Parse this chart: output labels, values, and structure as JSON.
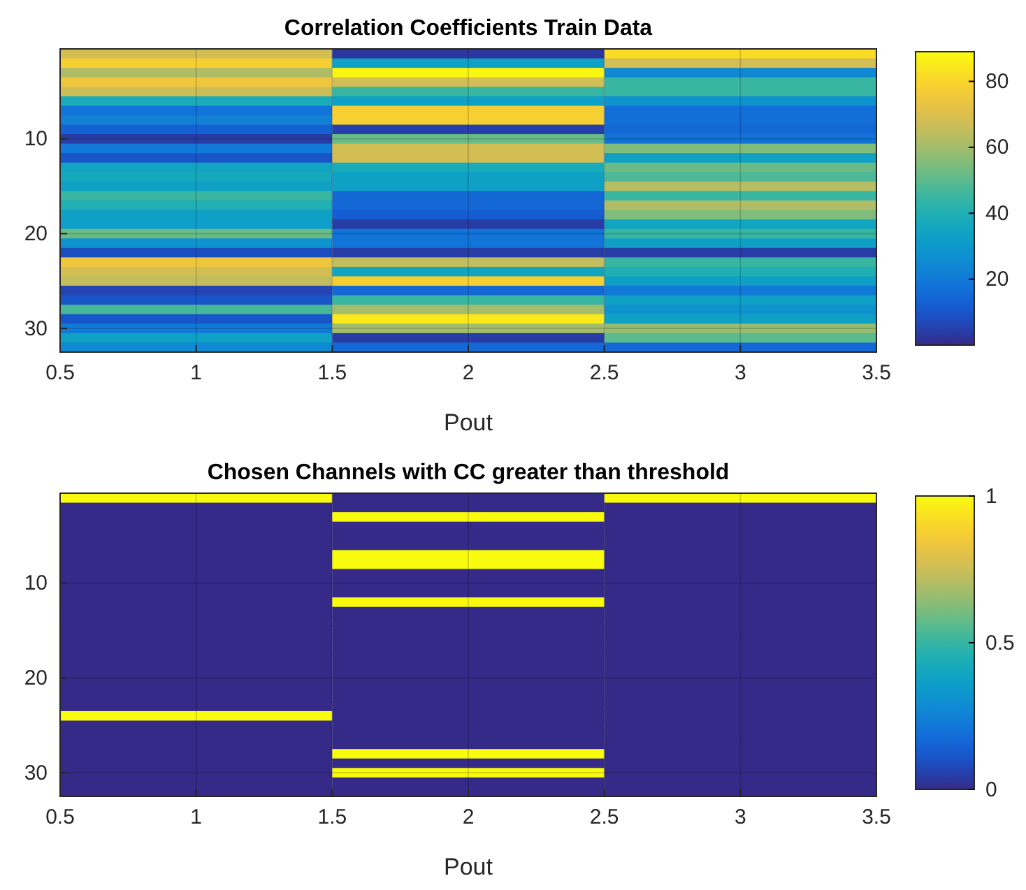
{
  "chart_data": [
    {
      "type": "heatmap",
      "title": "Correlation Coefficients Train Data",
      "xlabel": "Pout",
      "x": [
        1,
        2,
        3
      ],
      "xlim": [
        0.5,
        3.5
      ],
      "xticks": [
        0.5,
        1,
        1.5,
        2,
        2.5,
        3,
        3.5
      ],
      "y_categories": [
        null,
        null,
        null,
        null,
        null,
        null,
        null,
        null,
        null,
        "10",
        null,
        null,
        null,
        null,
        null,
        null,
        null,
        null,
        null,
        "20",
        null,
        null,
        null,
        null,
        null,
        null,
        null,
        null,
        null,
        "30",
        null,
        null
      ],
      "cells": [
        [
          68,
          3,
          82
        ],
        [
          78,
          33,
          68
        ],
        [
          62,
          88,
          25
        ],
        [
          75,
          68,
          45
        ],
        [
          67,
          45,
          45
        ],
        [
          38,
          33,
          28
        ],
        [
          18,
          78,
          17
        ],
        [
          22,
          78,
          17
        ],
        [
          13,
          5,
          15
        ],
        [
          4,
          52,
          18
        ],
        [
          20,
          68,
          55
        ],
        [
          10,
          68,
          33
        ],
        [
          35,
          38,
          52
        ],
        [
          37,
          33,
          48
        ],
        [
          33,
          33,
          63
        ],
        [
          45,
          15,
          45
        ],
        [
          40,
          15,
          62
        ],
        [
          33,
          12,
          55
        ],
        [
          32,
          4,
          35
        ],
        [
          52,
          18,
          45
        ],
        [
          28,
          18,
          33
        ],
        [
          8,
          4,
          4
        ],
        [
          75,
          65,
          45
        ],
        [
          68,
          35,
          40
        ],
        [
          65,
          78,
          33
        ],
        [
          6,
          15,
          20
        ],
        [
          10,
          45,
          33
        ],
        [
          47,
          60,
          28
        ],
        [
          10,
          85,
          33
        ],
        [
          20,
          60,
          58
        ],
        [
          33,
          4,
          50
        ],
        [
          25,
          15,
          15
        ]
      ],
      "clim": [
        0,
        89
      ],
      "cticks": [
        20,
        40,
        60,
        80
      ],
      "grid": true
    },
    {
      "type": "heatmap",
      "title": "Chosen Channels with CC greater than threshold",
      "xlabel": "Pout",
      "x": [
        1,
        2,
        3
      ],
      "xlim": [
        0.5,
        3.5
      ],
      "xticks": [
        0.5,
        1,
        1.5,
        2,
        2.5,
        3,
        3.5
      ],
      "y_categories": [
        null,
        null,
        null,
        null,
        null,
        null,
        null,
        null,
        null,
        "10",
        null,
        null,
        null,
        null,
        null,
        null,
        null,
        null,
        null,
        "20",
        null,
        null,
        null,
        null,
        null,
        null,
        null,
        null,
        null,
        "30",
        null,
        null
      ],
      "cells": [
        [
          1,
          0,
          1
        ],
        [
          0,
          0,
          0
        ],
        [
          0,
          1,
          0
        ],
        [
          0,
          0,
          0
        ],
        [
          0,
          0,
          0
        ],
        [
          0,
          0,
          0
        ],
        [
          0,
          1,
          0
        ],
        [
          0,
          1,
          0
        ],
        [
          0,
          0,
          0
        ],
        [
          0,
          0,
          0
        ],
        [
          0,
          0,
          0
        ],
        [
          0,
          1,
          0
        ],
        [
          0,
          0,
          0
        ],
        [
          0,
          0,
          0
        ],
        [
          0,
          0,
          0
        ],
        [
          0,
          0,
          0
        ],
        [
          0,
          0,
          0
        ],
        [
          0,
          0,
          0
        ],
        [
          0,
          0,
          0
        ],
        [
          0,
          0,
          0
        ],
        [
          0,
          0,
          0
        ],
        [
          0,
          0,
          0
        ],
        [
          0,
          0,
          0
        ],
        [
          1,
          0,
          0
        ],
        [
          0,
          0,
          0
        ],
        [
          0,
          0,
          0
        ],
        [
          0,
          0,
          0
        ],
        [
          0,
          1,
          0
        ],
        [
          0,
          0,
          0
        ],
        [
          0,
          1,
          0
        ],
        [
          0,
          0,
          0
        ],
        [
          0,
          0,
          0
        ]
      ],
      "clim": [
        0,
        1
      ],
      "cticks": [
        0,
        0.5,
        1
      ],
      "grid": true
    }
  ]
}
